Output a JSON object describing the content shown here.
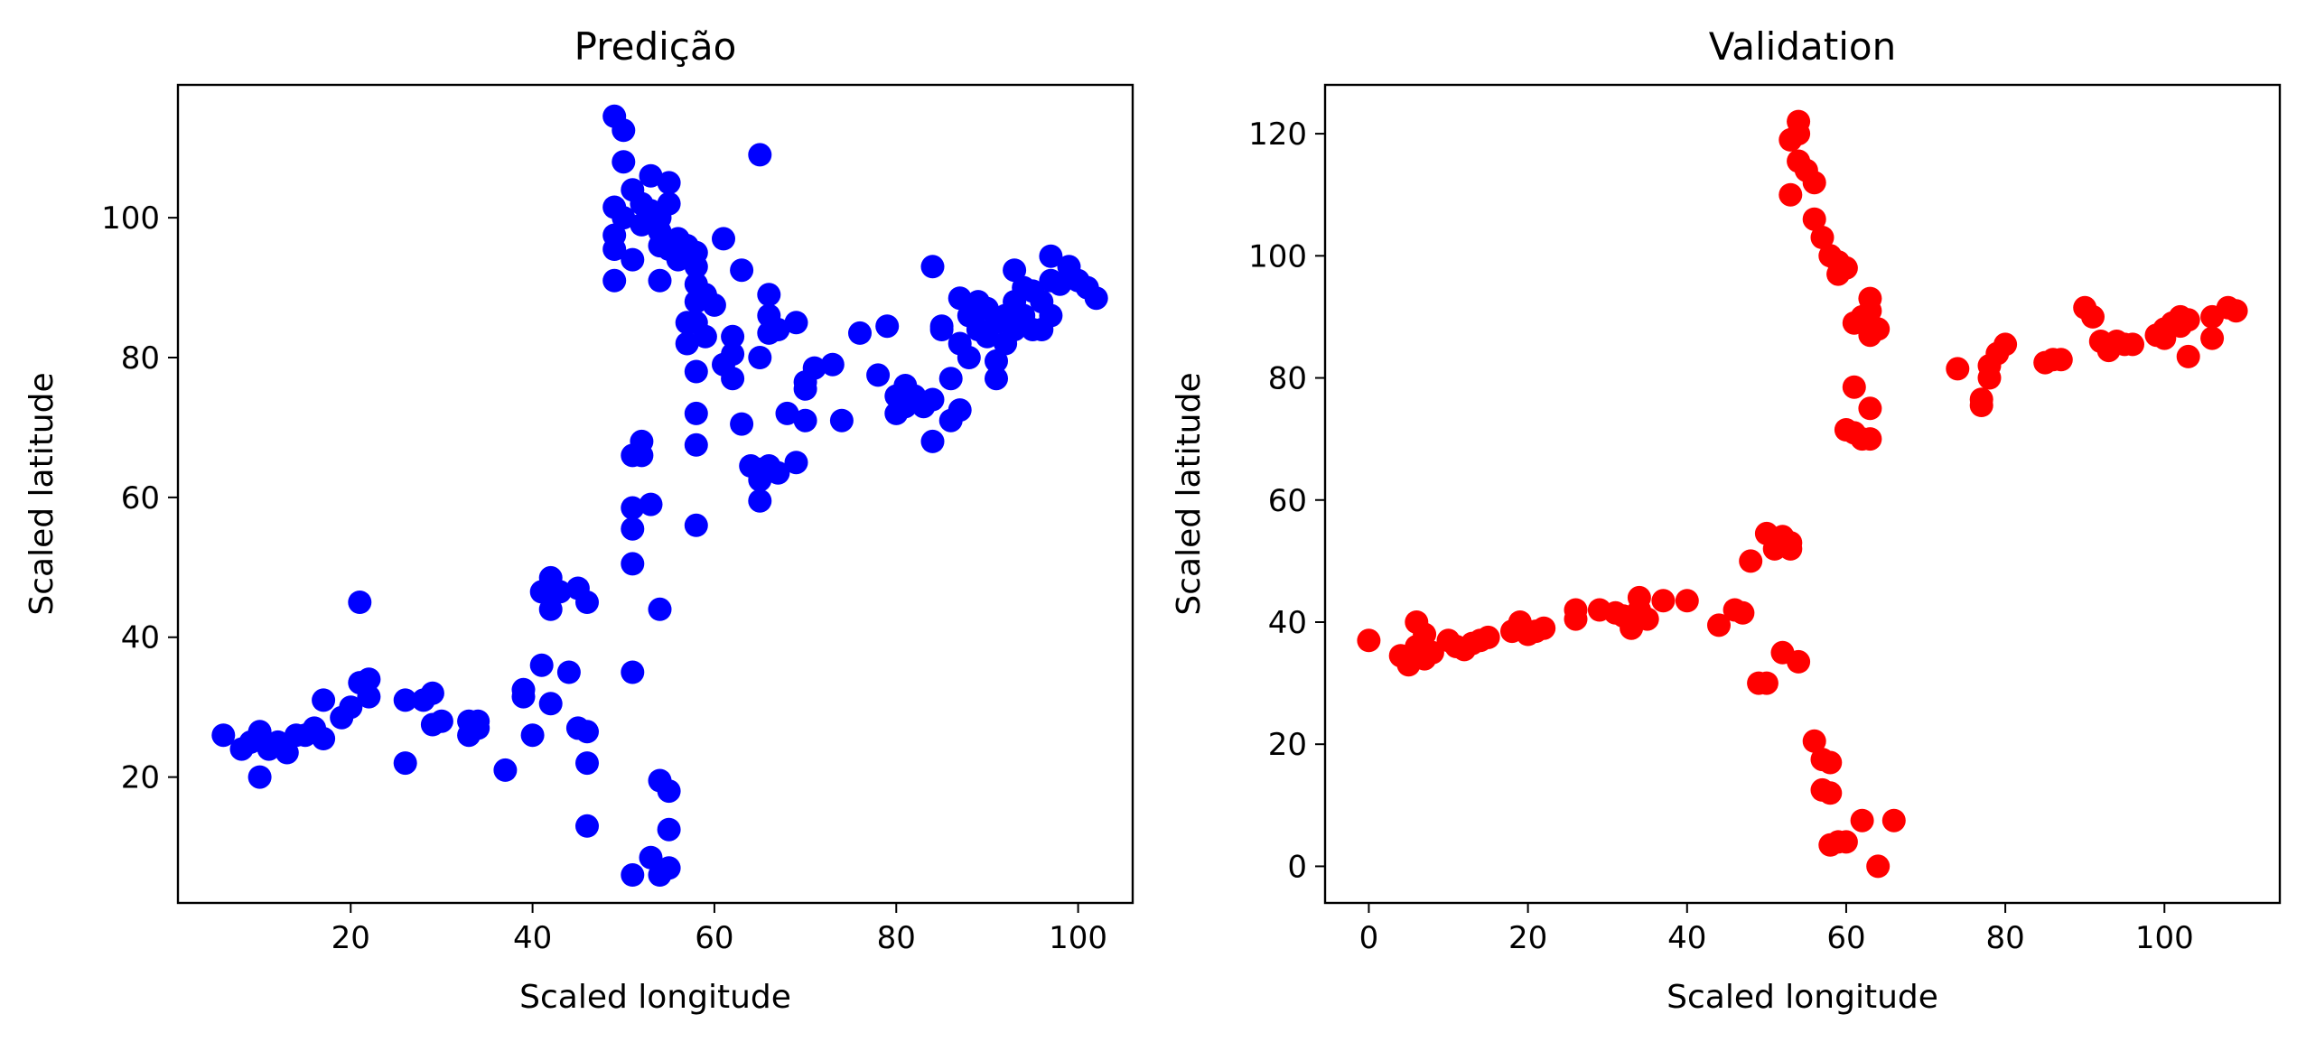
{
  "chart_data": [
    {
      "type": "scatter",
      "title": "Predição",
      "xlabel": "Scaled longitude",
      "ylabel": "Scaled latitude",
      "xlim": [
        1,
        106
      ],
      "ylim": [
        2,
        119
      ],
      "xticks": [
        20,
        40,
        60,
        80,
        100
      ],
      "yticks": [
        20,
        40,
        60,
        80,
        100
      ],
      "grid": false,
      "color": "#0000ff",
      "points": [
        [
          6,
          26
        ],
        [
          8,
          24
        ],
        [
          9,
          25
        ],
        [
          10,
          26.5
        ],
        [
          10,
          20
        ],
        [
          11,
          24
        ],
        [
          12,
          25
        ],
        [
          13,
          23.5
        ],
        [
          14,
          26
        ],
        [
          15,
          26
        ],
        [
          16,
          27
        ],
        [
          17,
          25.5
        ],
        [
          17,
          31
        ],
        [
          19,
          28.5
        ],
        [
          20,
          30
        ],
        [
          21,
          45
        ],
        [
          21,
          33.5
        ],
        [
          22,
          34
        ],
        [
          22,
          31.5
        ],
        [
          26,
          31
        ],
        [
          26,
          22
        ],
        [
          28,
          31
        ],
        [
          29,
          32
        ],
        [
          29,
          27.5
        ],
        [
          30,
          28
        ],
        [
          33,
          28
        ],
        [
          33,
          26
        ],
        [
          34,
          27
        ],
        [
          34,
          28
        ],
        [
          37,
          21
        ],
        [
          39,
          32.5
        ],
        [
          39,
          31.5
        ],
        [
          40,
          26
        ],
        [
          41,
          36
        ],
        [
          41,
          46.5
        ],
        [
          42,
          48.5
        ],
        [
          42,
          44
        ],
        [
          42,
          30.5
        ],
        [
          43,
          46.5
        ],
        [
          44,
          35
        ],
        [
          45,
          47
        ],
        [
          45,
          27
        ],
        [
          46,
          26.5
        ],
        [
          46,
          22
        ],
        [
          46,
          45
        ],
        [
          46,
          13
        ],
        [
          51,
          35
        ],
        [
          51,
          50.5
        ],
        [
          51,
          55.5
        ],
        [
          51,
          58.5
        ],
        [
          51,
          66
        ],
        [
          52,
          68
        ],
        [
          52,
          66
        ],
        [
          53,
          59
        ],
        [
          54,
          44
        ],
        [
          53,
          8.5
        ],
        [
          54,
          6
        ],
        [
          55,
          7
        ],
        [
          55,
          12.5
        ],
        [
          54,
          19.5
        ],
        [
          55,
          18
        ],
        [
          51,
          6
        ],
        [
          58,
          56
        ],
        [
          58,
          67.5
        ],
        [
          58,
          72
        ],
        [
          58,
          78
        ],
        [
          57,
          85
        ],
        [
          58,
          85
        ],
        [
          57,
          82
        ],
        [
          58,
          88
        ],
        [
          58,
          90.5
        ],
        [
          59,
          89
        ],
        [
          59,
          83
        ],
        [
          60,
          87.5
        ],
        [
          61,
          79
        ],
        [
          61,
          97
        ],
        [
          62,
          83
        ],
        [
          62,
          80.5
        ],
        [
          62,
          77
        ],
        [
          63,
          92.5
        ],
        [
          63,
          70.5
        ],
        [
          64,
          64.5
        ],
        [
          65,
          64
        ],
        [
          65,
          80
        ],
        [
          66,
          89
        ],
        [
          66,
          86
        ],
        [
          66,
          83.5
        ],
        [
          65,
          62.5
        ],
        [
          65,
          59.5
        ],
        [
          66,
          64.5
        ],
        [
          67,
          84
        ],
        [
          67,
          63.5
        ],
        [
          68,
          72
        ],
        [
          69,
          85
        ],
        [
          69,
          65
        ],
        [
          70,
          75.5
        ],
        [
          70,
          76.5
        ],
        [
          70,
          71
        ],
        [
          71,
          78.5
        ],
        [
          73,
          79
        ],
        [
          74,
          71
        ],
        [
          76,
          83.5
        ],
        [
          78,
          77.5
        ],
        [
          79,
          84.5
        ],
        [
          80,
          74.5
        ],
        [
          80,
          72
        ],
        [
          81,
          76
        ],
        [
          81,
          73
        ],
        [
          82,
          74.5
        ],
        [
          83,
          73
        ],
        [
          84,
          74
        ],
        [
          84,
          68
        ],
        [
          84,
          93
        ],
        [
          85,
          84.5
        ],
        [
          85,
          84
        ],
        [
          86,
          77
        ],
        [
          86,
          71
        ],
        [
          87,
          72.5
        ],
        [
          87,
          88.5
        ],
        [
          87,
          82
        ],
        [
          88,
          86
        ],
        [
          88,
          80
        ],
        [
          89,
          84
        ],
        [
          89,
          88
        ],
        [
          90,
          87
        ],
        [
          90,
          83
        ],
        [
          91,
          79.5
        ],
        [
          91,
          77
        ],
        [
          91,
          85
        ],
        [
          92,
          82
        ],
        [
          92,
          86
        ],
        [
          93,
          84
        ],
        [
          93,
          88
        ],
        [
          93,
          92.5
        ],
        [
          94,
          86
        ],
        [
          94,
          90
        ],
        [
          95,
          84
        ],
        [
          95,
          89.5
        ],
        [
          96,
          88
        ],
        [
          96,
          84
        ],
        [
          97,
          94.5
        ],
        [
          97,
          91
        ],
        [
          97,
          86
        ],
        [
          98,
          90.5
        ],
        [
          99,
          93
        ],
        [
          100,
          91
        ],
        [
          101,
          90
        ],
        [
          102,
          88.5
        ],
        [
          49,
          114.5
        ],
        [
          50,
          112.5
        ],
        [
          49,
          101.5
        ],
        [
          50,
          108
        ],
        [
          51,
          104
        ],
        [
          52,
          102
        ],
        [
          53,
          101
        ],
        [
          49,
          97.5
        ],
        [
          49,
          95.5
        ],
        [
          49,
          91
        ],
        [
          51,
          94
        ],
        [
          52,
          99
        ],
        [
          50,
          100
        ],
        [
          54,
          100
        ],
        [
          54,
          98
        ],
        [
          53,
          106
        ],
        [
          55,
          105
        ],
        [
          55,
          102
        ],
        [
          54,
          96
        ],
        [
          54,
          91
        ],
        [
          55,
          95.5
        ],
        [
          56,
          97
        ],
        [
          57,
          96
        ],
        [
          58,
          95
        ],
        [
          56,
          94
        ],
        [
          65,
          109
        ],
        [
          58,
          93
        ]
      ]
    },
    {
      "type": "scatter",
      "title": "Validation",
      "xlabel": "Scaled longitude",
      "ylabel": "Scaled latitude",
      "xlim": [
        -5.5,
        114.5
      ],
      "ylim": [
        -6,
        128
      ],
      "xticks": [
        0,
        20,
        40,
        60,
        80,
        100
      ],
      "yticks": [
        0,
        20,
        40,
        60,
        80,
        100,
        120
      ],
      "grid": false,
      "color": "#ff0000",
      "points": [
        [
          0,
          37
        ],
        [
          4,
          34.5
        ],
        [
          5,
          33
        ],
        [
          6,
          40
        ],
        [
          6,
          36
        ],
        [
          7,
          38
        ],
        [
          7,
          34
        ],
        [
          8,
          35
        ],
        [
          10,
          37
        ],
        [
          11,
          36
        ],
        [
          12,
          35.5
        ],
        [
          13,
          36.5
        ],
        [
          14,
          37
        ],
        [
          15,
          37.5
        ],
        [
          18,
          38.5
        ],
        [
          19,
          40
        ],
        [
          20,
          38
        ],
        [
          21,
          38.5
        ],
        [
          22,
          39
        ],
        [
          26,
          40.5
        ],
        [
          26,
          42
        ],
        [
          29,
          42
        ],
        [
          31,
          41.5
        ],
        [
          32,
          41
        ],
        [
          33,
          39
        ],
        [
          34,
          42
        ],
        [
          34,
          44
        ],
        [
          35,
          40.5
        ],
        [
          37,
          43.5
        ],
        [
          40,
          43.5
        ],
        [
          44,
          39.5
        ],
        [
          46,
          42
        ],
        [
          47,
          41.5
        ],
        [
          48,
          50
        ],
        [
          49,
          30
        ],
        [
          50,
          30
        ],
        [
          50,
          54.5
        ],
        [
          51,
          52
        ],
        [
          52,
          54
        ],
        [
          52,
          35
        ],
        [
          53,
          52
        ],
        [
          53,
          53
        ],
        [
          54,
          33.5
        ],
        [
          56,
          20.5
        ],
        [
          57,
          17.5
        ],
        [
          57,
          12.5
        ],
        [
          58,
          17
        ],
        [
          58,
          12
        ],
        [
          58,
          3.5
        ],
        [
          59,
          4
        ],
        [
          60,
          4
        ],
        [
          62,
          7.5
        ],
        [
          64,
          0
        ],
        [
          66,
          7.5
        ],
        [
          60,
          71.5
        ],
        [
          61,
          71
        ],
        [
          62,
          70
        ],
        [
          63,
          70
        ],
        [
          61,
          78.5
        ],
        [
          63,
          75
        ],
        [
          61,
          89
        ],
        [
          62,
          90
        ],
        [
          63,
          91
        ],
        [
          63,
          93
        ],
        [
          63,
          87
        ],
        [
          64,
          88
        ],
        [
          59,
          97
        ],
        [
          59,
          99
        ],
        [
          60,
          98
        ],
        [
          58,
          100
        ],
        [
          57,
          103
        ],
        [
          56,
          106
        ],
        [
          56,
          112
        ],
        [
          55,
          114
        ],
        [
          54,
          115.5
        ],
        [
          54,
          120
        ],
        [
          54,
          122
        ],
        [
          53,
          119
        ],
        [
          53,
          110
        ],
        [
          74,
          81.5
        ],
        [
          77,
          76.5
        ],
        [
          77,
          75.5
        ],
        [
          78,
          80
        ],
        [
          78,
          82
        ],
        [
          79,
          84
        ],
        [
          80,
          85.5
        ],
        [
          85,
          82.5
        ],
        [
          86,
          83
        ],
        [
          87,
          83
        ],
        [
          90,
          91.5
        ],
        [
          91,
          90
        ],
        [
          92,
          86
        ],
        [
          93,
          84.5
        ],
        [
          94,
          86
        ],
        [
          95,
          85.5
        ],
        [
          96,
          85.5
        ],
        [
          99,
          87
        ],
        [
          100,
          88
        ],
        [
          100,
          86.5
        ],
        [
          101,
          89
        ],
        [
          102,
          88.5
        ],
        [
          102,
          90
        ],
        [
          103,
          89.5
        ],
        [
          103,
          83.5
        ],
        [
          106,
          86.5
        ],
        [
          106,
          90
        ],
        [
          108,
          91.5
        ],
        [
          109,
          91
        ]
      ]
    }
  ]
}
